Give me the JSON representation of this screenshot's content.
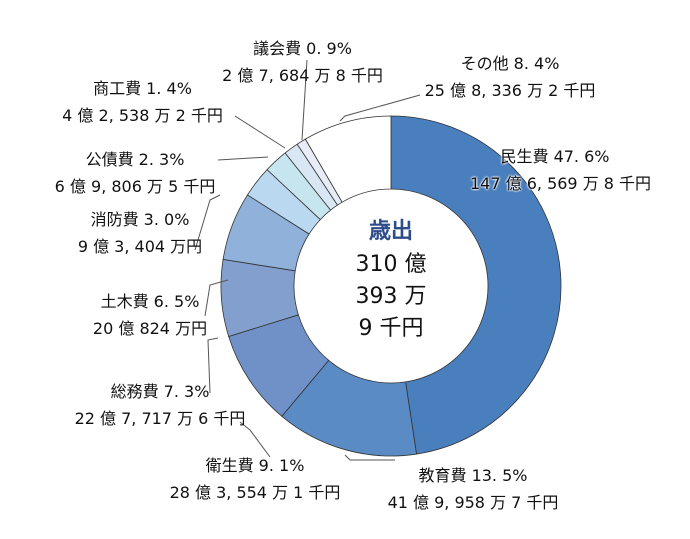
{
  "chart_data": {
    "type": "pie",
    "variant": "donut",
    "title": "歳出",
    "total_lines": [
      "310 億",
      "393 万",
      "9 千円"
    ],
    "slices": [
      {
        "name": "民生費",
        "percent": 47.6,
        "pct_label": "47. 6%",
        "amount": "147 億 6, 569 万 8 千円",
        "color": "#4a7fbd"
      },
      {
        "name": "教育費",
        "percent": 13.5,
        "pct_label": "13. 5%",
        "amount": "41 億 9, 958 万 7 千円",
        "color": "#5a8bc4"
      },
      {
        "name": "衛生費",
        "percent": 9.1,
        "pct_label": "9. 1%",
        "amount": "28 億 3, 554 万 1 千円",
        "color": "#6f91c7"
      },
      {
        "name": "総務費",
        "percent": 7.3,
        "pct_label": "7. 3%",
        "amount": "22 億 7, 717 万 6 千円",
        "color": "#829fcd"
      },
      {
        "name": "土木費",
        "percent": 6.5,
        "pct_label": "6. 5%",
        "amount": "20 億 824 万円",
        "color": "#8fb1da"
      },
      {
        "name": "消防費",
        "percent": 3.0,
        "pct_label": "3. 0%",
        "amount": "9 億 3, 404 万円",
        "color": "#bad8f0"
      },
      {
        "name": "公債費",
        "percent": 2.3,
        "pct_label": "2. 3%",
        "amount": "6 億 9, 806 万 5 千円",
        "color": "#c6e5ef"
      },
      {
        "name": "商工費",
        "percent": 1.4,
        "pct_label": "1. 4%",
        "amount": "4 億 2, 538 万 2 千円",
        "color": "#d9e6f4"
      },
      {
        "name": "議会費",
        "percent": 0.9,
        "pct_label": "0. 9%",
        "amount": "2 億 7, 684 万 8 千円",
        "color": "#e8ecf6"
      },
      {
        "name": "その他",
        "percent": 8.4,
        "pct_label": "8. 4%",
        "amount": "25 億 8, 336 万 2 千円",
        "color": "#ffffff"
      }
    ]
  }
}
